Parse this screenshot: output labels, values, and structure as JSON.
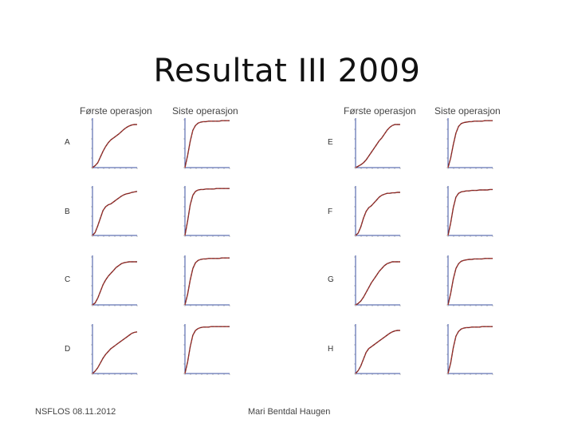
{
  "title": "Resultat III 2009",
  "column_headers": [
    "Første operasjon",
    "Siste operasjon",
    "Første operasjon",
    "Siste operasjon"
  ],
  "row_labels_left": [
    "A",
    "B",
    "C",
    "D"
  ],
  "row_labels_right": [
    "E",
    "F",
    "G",
    "H"
  ],
  "footer": {
    "left": "NSFLOS 08.11.2012",
    "center": "Mari Bentdal Haugen"
  },
  "colors": {
    "curve": "#7a2a2a",
    "curve_highlight": "#c0392b",
    "axis": "#3a4fa0"
  },
  "chart_data": [
    {
      "type": "line",
      "panel": "A",
      "operation": "Første operasjon",
      "y": [
        0,
        4,
        10,
        22,
        34,
        44,
        52,
        58,
        62,
        66,
        70,
        75,
        80,
        84,
        87,
        89,
        90,
        90
      ]
    },
    {
      "type": "line",
      "panel": "A",
      "operation": "Siste operasjon",
      "y": [
        0,
        25,
        55,
        78,
        88,
        93,
        95,
        96,
        96,
        97,
        97,
        97,
        97,
        97,
        98,
        98,
        98,
        98
      ]
    },
    {
      "type": "line",
      "panel": "E",
      "operation": "Første operasjon",
      "y": [
        0,
        3,
        6,
        10,
        16,
        24,
        32,
        40,
        48,
        56,
        62,
        70,
        78,
        84,
        88,
        90,
        90,
        90
      ]
    },
    {
      "type": "line",
      "panel": "E",
      "operation": "Siste operasjon",
      "y": [
        0,
        20,
        48,
        72,
        86,
        92,
        94,
        95,
        96,
        96,
        97,
        97,
        97,
        97,
        98,
        98,
        98,
        98
      ]
    },
    {
      "type": "line",
      "panel": "B",
      "operation": "Første operasjon",
      "y": [
        0,
        6,
        20,
        36,
        52,
        60,
        64,
        66,
        70,
        74,
        78,
        82,
        85,
        87,
        88,
        90,
        91,
        92
      ]
    },
    {
      "type": "line",
      "panel": "B",
      "operation": "Siste operasjon",
      "y": [
        0,
        30,
        64,
        84,
        92,
        95,
        96,
        96,
        97,
        97,
        97,
        97,
        98,
        98,
        98,
        98,
        98,
        98
      ]
    },
    {
      "type": "line",
      "panel": "F",
      "operation": "Første operasjon",
      "y": [
        0,
        5,
        18,
        36,
        50,
        58,
        62,
        68,
        74,
        80,
        84,
        86,
        88,
        88,
        89,
        89,
        90,
        90
      ]
    },
    {
      "type": "line",
      "panel": "F",
      "operation": "Siste operasjon",
      "y": [
        0,
        26,
        58,
        80,
        88,
        91,
        92,
        93,
        93,
        94,
        94,
        94,
        95,
        95,
        95,
        95,
        96,
        96
      ]
    },
    {
      "type": "line",
      "panel": "C",
      "operation": "Første operasjon",
      "y": [
        0,
        4,
        14,
        28,
        42,
        52,
        60,
        66,
        72,
        78,
        82,
        86,
        88,
        89,
        90,
        90,
        90,
        90
      ]
    },
    {
      "type": "line",
      "panel": "C",
      "operation": "Siste operasjon",
      "y": [
        0,
        22,
        52,
        76,
        88,
        93,
        95,
        96,
        96,
        97,
        97,
        97,
        97,
        97,
        98,
        98,
        98,
        98
      ]
    },
    {
      "type": "line",
      "panel": "G",
      "operation": "Første operasjon",
      "y": [
        0,
        3,
        8,
        16,
        26,
        36,
        46,
        54,
        62,
        70,
        76,
        82,
        86,
        88,
        90,
        90,
        90,
        90
      ]
    },
    {
      "type": "line",
      "panel": "G",
      "operation": "Siste operasjon",
      "y": [
        0,
        24,
        54,
        76,
        86,
        91,
        93,
        94,
        95,
        95,
        96,
        96,
        96,
        96,
        97,
        97,
        97,
        97
      ]
    },
    {
      "type": "line",
      "panel": "D",
      "operation": "Første operasjon",
      "y": [
        0,
        5,
        12,
        22,
        32,
        40,
        46,
        52,
        56,
        60,
        64,
        68,
        72,
        76,
        80,
        84,
        86,
        87
      ]
    },
    {
      "type": "line",
      "panel": "D",
      "operation": "Siste operasjon",
      "y": [
        0,
        24,
        56,
        80,
        90,
        94,
        96,
        97,
        97,
        97,
        98,
        98,
        98,
        98,
        98,
        98,
        98,
        98
      ]
    },
    {
      "type": "line",
      "panel": "H",
      "operation": "Første operasjon",
      "y": [
        0,
        6,
        16,
        30,
        44,
        52,
        56,
        60,
        64,
        68,
        72,
        76,
        80,
        84,
        87,
        89,
        90,
        90
      ]
    },
    {
      "type": "line",
      "panel": "H",
      "operation": "Siste operasjon",
      "y": [
        0,
        22,
        54,
        78,
        88,
        93,
        95,
        96,
        96,
        97,
        97,
        97,
        97,
        98,
        98,
        98,
        98,
        98
      ]
    }
  ]
}
